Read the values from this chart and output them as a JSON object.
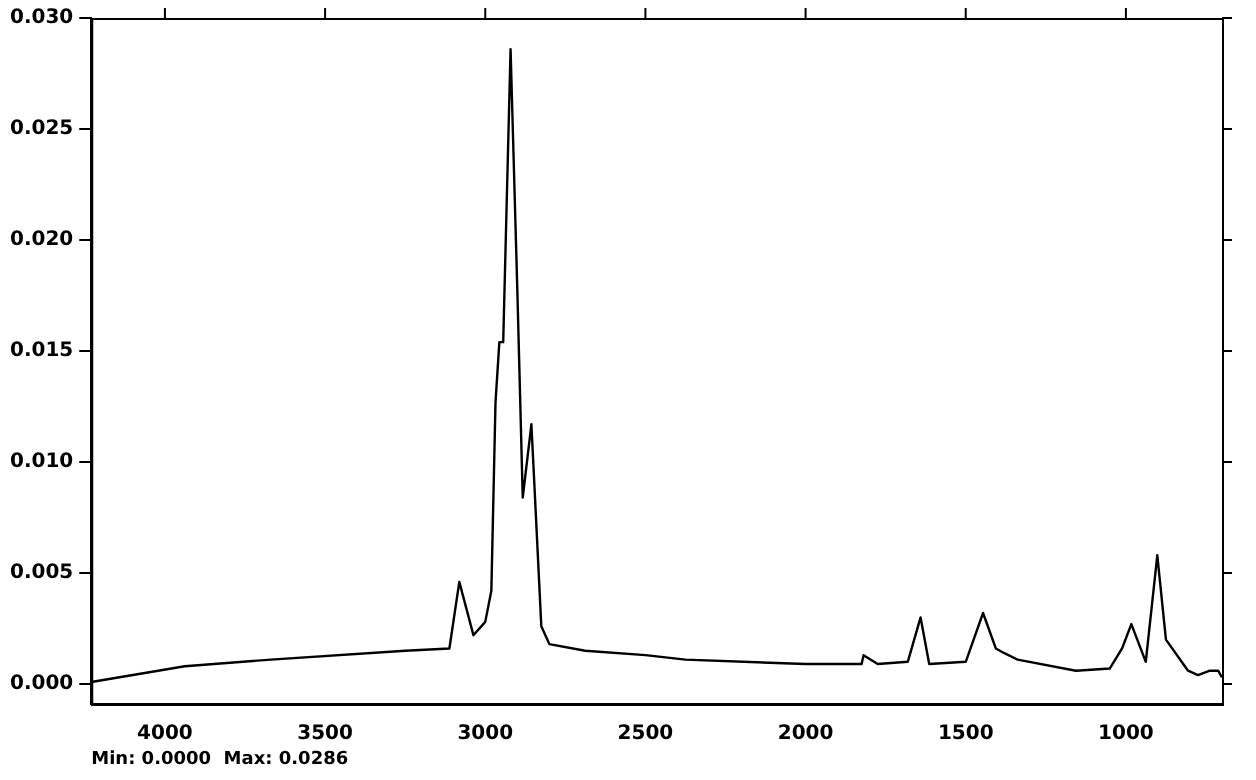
{
  "chart_data": {
    "type": "line",
    "xlim": [
      4230,
      700
    ],
    "xticks": [
      4000,
      3500,
      3000,
      2500,
      2000,
      1500,
      1000
    ],
    "ylim": [
      -0.0009,
      0.03
    ],
    "yticks": [
      {
        "value": 0,
        "label": "0.000"
      },
      {
        "value": 0.005,
        "label": "0.005"
      },
      {
        "value": 0.01,
        "label": "0.010"
      },
      {
        "value": 0.015,
        "label": "0.015"
      },
      {
        "value": 0.02,
        "label": "0.020"
      },
      {
        "value": 0.025,
        "label": "0.025"
      },
      {
        "value": 0.03,
        "label": "0.030"
      }
    ],
    "grid": false,
    "legend": false,
    "marker": "none",
    "line_style": "solid",
    "annotations": [
      "Min: 0.0000  Max: 0.0286"
    ],
    "series": [
      {
        "color": "#000000",
        "x": [
          4225,
          3938,
          3669,
          3250,
          3112,
          3081,
          3037,
          3000,
          2981,
          2968,
          2956,
          2944,
          2921,
          2900,
          2883,
          2856,
          2844,
          2825,
          2800,
          2688,
          2500,
          2375,
          2000,
          1825,
          1819,
          1775,
          1681,
          1641,
          1614,
          1500,
          1446,
          1406,
          1381,
          1338,
          1156,
          1050,
          1012,
          983,
          938,
          902,
          875,
          806,
          775,
          738,
          712,
          700
        ],
        "values": [
          0.0001,
          0.0008,
          0.0011,
          0.0015,
          0.0016,
          0.0046,
          0.0022,
          0.0028,
          0.0042,
          0.0127,
          0.0154,
          0.0154,
          0.0286,
          0.0178,
          0.0084,
          0.0117,
          0.0082,
          0.0026,
          0.0018,
          0.0015,
          0.0013,
          0.0011,
          0.0009,
          0.0009,
          0.0013,
          0.0009,
          0.001,
          0.003,
          0.0009,
          0.001,
          0.0032,
          0.0016,
          0.0014,
          0.0011,
          0.0006,
          0.0007,
          0.0016,
          0.0027,
          0.001,
          0.0058,
          0.002,
          0.0006,
          0.0004,
          0.0006,
          0.0006,
          0.0003
        ]
      }
    ]
  }
}
